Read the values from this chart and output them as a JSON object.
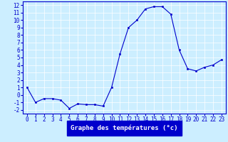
{
  "hours": [
    0,
    1,
    2,
    3,
    4,
    5,
    6,
    7,
    8,
    9,
    10,
    11,
    12,
    13,
    14,
    15,
    16,
    17,
    18,
    19,
    20,
    21,
    22,
    23
  ],
  "temperatures": [
    1.0,
    -1.0,
    -0.5,
    -0.5,
    -0.7,
    -1.8,
    -1.2,
    -1.3,
    -1.3,
    -1.5,
    1.0,
    5.5,
    9.0,
    10.0,
    11.5,
    11.8,
    11.8,
    10.8,
    6.0,
    3.5,
    3.2,
    3.7,
    4.0,
    4.7
  ],
  "line_color": "#0000cc",
  "marker_color": "#0000cc",
  "bg_color": "#cceeff",
  "grid_color": "#ffffff",
  "xlabel": "Graphe des températures (°c)",
  "xlabel_color": "#ffffff",
  "xlabel_bg": "#0000cc",
  "ylabel_values": [
    -2,
    -1,
    0,
    1,
    2,
    3,
    4,
    5,
    6,
    7,
    8,
    9,
    10,
    11,
    12
  ],
  "xlim": [
    -0.5,
    23.5
  ],
  "ylim": [
    -2.5,
    12.5
  ],
  "tick_fontsize": 5.5,
  "label_fontsize": 6.5
}
